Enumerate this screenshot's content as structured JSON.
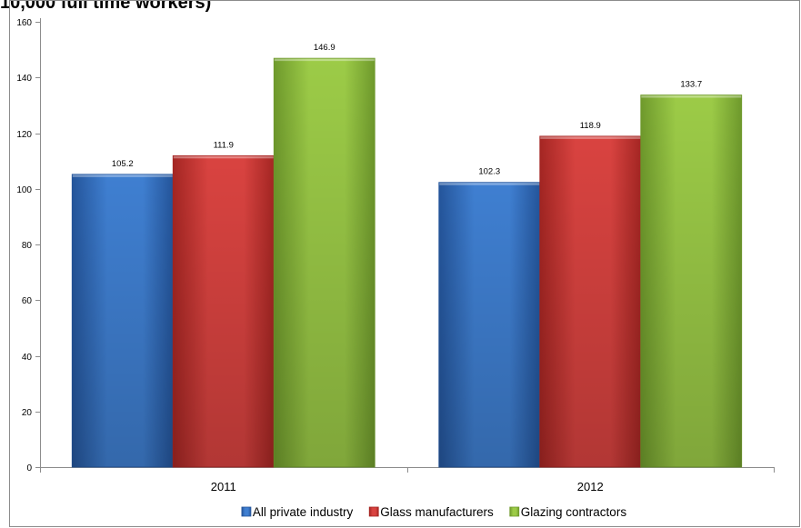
{
  "chart_data": {
    "type": "bar",
    "title": "10,000 full time workers)",
    "categories": [
      "2011",
      "2012"
    ],
    "series": [
      {
        "name": "All private industry",
        "values": [
          105.2,
          102.3
        ],
        "color": "#3f7fd1",
        "shade": "#24559b"
      },
      {
        "name": "Glass manufacturers",
        "values": [
          111.9,
          118.9
        ],
        "color": "#d94340",
        "shade": "#a52623"
      },
      {
        "name": "Glazing contractors",
        "values": [
          146.9,
          133.7
        ],
        "color": "#9ccb47",
        "shade": "#6f9a2c"
      }
    ],
    "ylim": [
      0,
      160
    ],
    "yticks": [
      0,
      20,
      40,
      60,
      80,
      100,
      120,
      140,
      160
    ],
    "grid": false,
    "legend_position": "bottom",
    "data_labels": true
  }
}
